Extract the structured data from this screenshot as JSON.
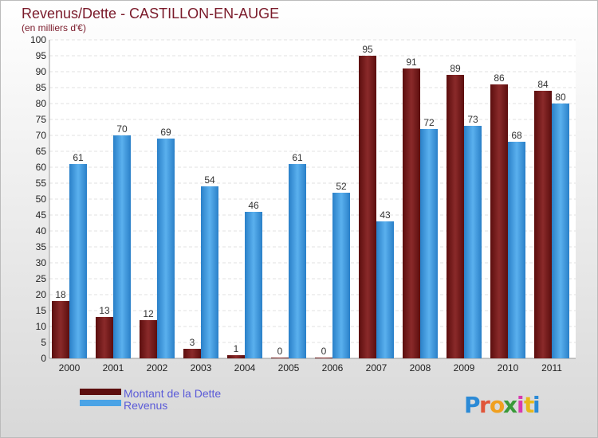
{
  "chart_data": {
    "type": "bar",
    "title": "Revenus/Dette - CASTILLON-EN-AUGE",
    "subtitle": "(en milliers d'€)",
    "categories": [
      "2000",
      "2001",
      "2002",
      "2003",
      "2004",
      "2005",
      "2006",
      "2007",
      "2008",
      "2009",
      "2010",
      "2011"
    ],
    "series": [
      {
        "name": "Montant de la Dette",
        "values": [
          18,
          13,
          12,
          3,
          1,
          0,
          0,
          95,
          91,
          89,
          86,
          84
        ],
        "color": "#7a1a1a"
      },
      {
        "name": "Revenus",
        "values": [
          61,
          70,
          69,
          54,
          46,
          61,
          52,
          43,
          72,
          73,
          68,
          80
        ],
        "color": "#4aa3e6"
      }
    ],
    "ylim": [
      0,
      100
    ],
    "ytick_step": 5,
    "grid": true,
    "legend_position": "bottom-left"
  },
  "brand": {
    "letters": [
      "P",
      "r",
      "o",
      "x",
      "i",
      "t",
      "i"
    ],
    "colors": [
      "#2b8ad6",
      "#e0553a",
      "#f0a020",
      "#3a9a3a",
      "#d83ab0",
      "#e8b81a",
      "#2b8ad6"
    ]
  }
}
